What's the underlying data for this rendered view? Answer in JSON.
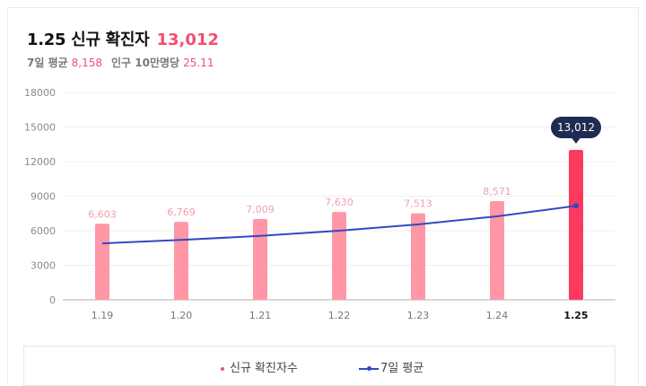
{
  "header": {
    "title": "1.25 신규 확진자",
    "total": "13,012",
    "avg_label": "7일 평균",
    "avg_value": "8,158",
    "per_label": "인구 10만명당",
    "per_value": "25.11"
  },
  "legend": {
    "bar_label": "신규 확진자수",
    "line_label": "7일 평균"
  },
  "colors": {
    "bar": "#ff97a6",
    "bar_highlight": "#fc3a5f",
    "line": "#3248c6",
    "label": "#f0a0ad",
    "tooltip_bg": "#1f2b52"
  },
  "chart_data": {
    "type": "bar",
    "categories": [
      "1.19",
      "1.20",
      "1.21",
      "1.22",
      "1.23",
      "1.24",
      "1.25"
    ],
    "series": [
      {
        "name": "신규 확진자수",
        "values": [
          6603,
          6769,
          7009,
          7630,
          7513,
          8571,
          13012
        ]
      },
      {
        "name": "7일 평균",
        "values": [
          4900,
          5200,
          5550,
          6000,
          6550,
          7250,
          8158
        ]
      }
    ],
    "data_labels": [
      "6,603",
      "6,769",
      "7,009",
      "7,630",
      "7,513",
      "8,571",
      "13,012"
    ],
    "highlight_index": 6,
    "yticks": [
      0,
      3000,
      6000,
      9000,
      12000,
      15000,
      18000
    ],
    "ylim": [
      0,
      18000
    ],
    "grid": true
  }
}
